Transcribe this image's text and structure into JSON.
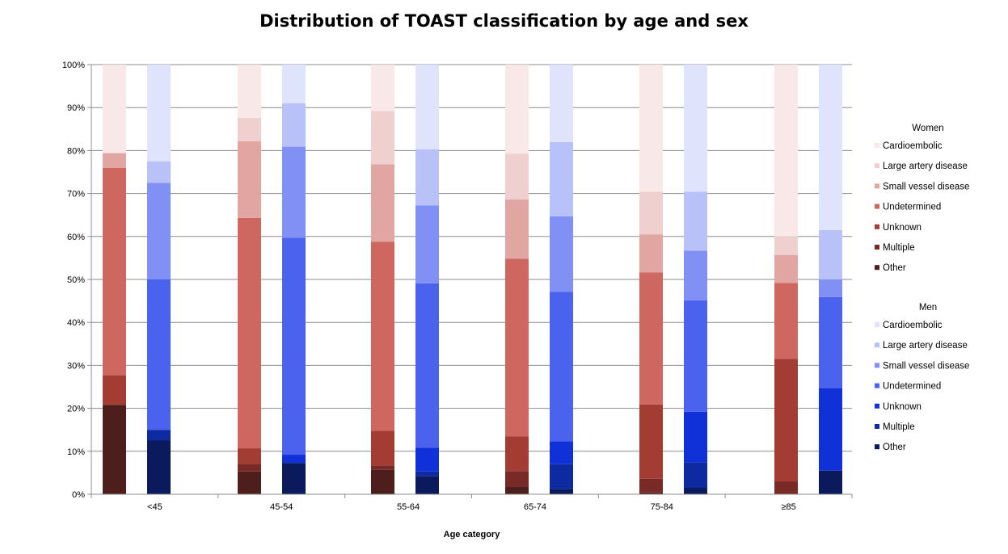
{
  "chart_data": {
    "type": "bar",
    "stacked": true,
    "title": "Distribution of TOAST classification by age and sex",
    "xlabel": "Age category",
    "ylabel": "",
    "ylim": [
      0,
      100
    ],
    "y_ticks": [
      "0%",
      "10%",
      "20%",
      "30%",
      "40%",
      "50%",
      "60%",
      "70%",
      "80%",
      "90%",
      "100%"
    ],
    "categories": [
      "<45",
      "45-54",
      "55-64",
      "65-74",
      "75-84",
      "≥85"
    ],
    "grid": "horizontal",
    "legend_position": "right",
    "stack_order": [
      "Other",
      "Multiple",
      "Unknown",
      "Undetermined",
      "Small vessel disease",
      "Large artery disease",
      "Cardioembolic"
    ],
    "groups": [
      {
        "name": "Women",
        "colors": {
          "Other": "#4e1e1c",
          "Multiple": "#7a2a26",
          "Unknown": "#a33c33",
          "Undetermined": "#cd6760",
          "Small vessel disease": "#e2a6a2",
          "Large artery disease": "#f0d0cf",
          "Cardioembolic": "#f8e8e8"
        },
        "series": [
          {
            "name": "Other",
            "values": [
              20.8,
              5.3,
              5.7,
              1.8,
              0.4,
              0
            ]
          },
          {
            "name": "Multiple",
            "values": [
              0,
              1.8,
              1.0,
              3.6,
              3.2,
              3.0
            ]
          },
          {
            "name": "Unknown",
            "values": [
              6.9,
              3.6,
              8.1,
              8.1,
              17.3,
              28.5
            ]
          },
          {
            "name": "Undetermined",
            "values": [
              48.3,
              53.6,
              44.0,
              41.3,
              30.7,
              17.7
            ]
          },
          {
            "name": "Small vessel disease",
            "values": [
              3.4,
              17.9,
              18.0,
              13.8,
              8.9,
              6.5
            ]
          },
          {
            "name": "Large artery disease",
            "values": [
              0,
              5.4,
              12.4,
              10.7,
              9.9,
              4.3
            ]
          },
          {
            "name": "Cardioembolic",
            "values": [
              20.6,
              12.4,
              10.8,
              20.7,
              29.6,
              40.0
            ]
          }
        ]
      },
      {
        "name": "Men",
        "colors": {
          "Other": "#0a1a5c",
          "Multiple": "#0d2aa0",
          "Unknown": "#1030d8",
          "Undetermined": "#4a62ee",
          "Small vessel disease": "#8190f4",
          "Large artery disease": "#b8c2f8",
          "Cardioembolic": "#dfe3fc"
        },
        "series": [
          {
            "name": "Other",
            "values": [
              12.5,
              7.3,
              4.2,
              1.2,
              1.5,
              5.5
            ]
          },
          {
            "name": "Multiple",
            "values": [
              2.5,
              0,
              1.1,
              5.8,
              5.9,
              0
            ]
          },
          {
            "name": "Unknown",
            "values": [
              0,
              1.9,
              5.5,
              5.3,
              11.8,
              19.2
            ]
          },
          {
            "name": "Undetermined",
            "values": [
              35.0,
              50.5,
              38.3,
              34.8,
              25.9,
              21.2
            ]
          },
          {
            "name": "Small vessel disease",
            "values": [
              22.5,
              21.2,
              18.1,
              17.6,
              11.6,
              4.1
            ]
          },
          {
            "name": "Large artery disease",
            "values": [
              5.0,
              10.1,
              13.1,
              17.3,
              13.7,
              11.5
            ]
          },
          {
            "name": "Cardioembolic",
            "values": [
              22.5,
              9.0,
              19.7,
              18.0,
              29.6,
              38.5
            ]
          }
        ]
      }
    ]
  }
}
